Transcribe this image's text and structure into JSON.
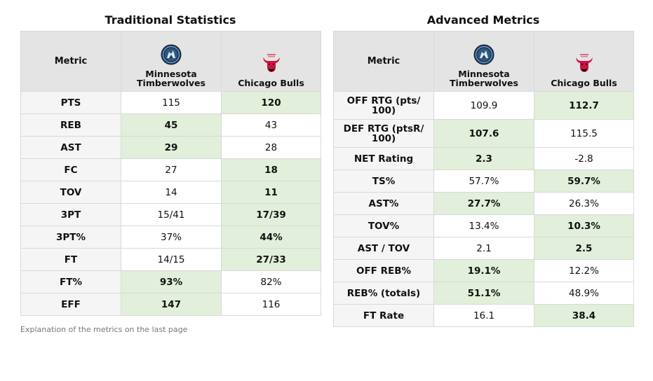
{
  "traditional": {
    "title": "Traditional Statistics",
    "header": {
      "metric": "Metric",
      "team1": "Minnesota Timberwolves",
      "team2": "Chicago Bulls"
    },
    "rows": [
      {
        "metric": "PTS",
        "team1": "115",
        "team2": "120",
        "winner": 2
      },
      {
        "metric": "REB",
        "team1": "45",
        "team2": "43",
        "winner": 1
      },
      {
        "metric": "AST",
        "team1": "29",
        "team2": "28",
        "winner": 1
      },
      {
        "metric": "FC",
        "team1": "27",
        "team2": "18",
        "winner": 2
      },
      {
        "metric": "TOV",
        "team1": "14",
        "team2": "11",
        "winner": 2
      },
      {
        "metric": "3PT",
        "team1": "15/41",
        "team2": "17/39",
        "winner": 2
      },
      {
        "metric": "3PT%",
        "team1": "37%",
        "team2": "44%",
        "winner": 2
      },
      {
        "metric": "FT",
        "team1": "14/15",
        "team2": "27/33",
        "winner": 2
      },
      {
        "metric": "FT%",
        "team1": "93%",
        "team2": "82%",
        "winner": 1
      },
      {
        "metric": "EFF",
        "team1": "147",
        "team2": "116",
        "winner": 1
      }
    ]
  },
  "advanced": {
    "title": "Advanced Metrics",
    "header": {
      "metric": "Metric",
      "team1": "Minnesota Timberwolves",
      "team2": "Chicago Bulls"
    },
    "rows": [
      {
        "metric": "OFF RTG (pts/ 100)",
        "team1": "109.9",
        "team2": "112.7",
        "winner": 2,
        "tall": true
      },
      {
        "metric": "DEF RTG (ptsR/ 100)",
        "team1": "107.6",
        "team2": "115.5",
        "winner": 1,
        "tall": true
      },
      {
        "metric": "NET Rating",
        "team1": "2.3",
        "team2": "-2.8",
        "winner": 1
      },
      {
        "metric": "TS%",
        "team1": "57.7%",
        "team2": "59.7%",
        "winner": 2
      },
      {
        "metric": "AST%",
        "team1": "27.7%",
        "team2": "26.3%",
        "winner": 1
      },
      {
        "metric": "TOV%",
        "team1": "13.4%",
        "team2": "10.3%",
        "winner": 2
      },
      {
        "metric": "AST / TOV",
        "team1": "2.1",
        "team2": "2.5",
        "winner": 2
      },
      {
        "metric": "OFF REB%",
        "team1": "19.1%",
        "team2": "12.2%",
        "winner": 1
      },
      {
        "metric": "REB% (totals)",
        "team1": "51.1%",
        "team2": "48.9%",
        "winner": 1
      },
      {
        "metric": "FT Rate",
        "team1": "16.1",
        "team2": "38.4",
        "winner": 2
      }
    ]
  },
  "logos": {
    "team1": {
      "icon": "timberwolves-logo-icon",
      "color": "#1f3a5c"
    },
    "team2": {
      "icon": "bulls-logo-icon",
      "color": "#ce1141"
    }
  },
  "colors": {
    "win_highlight": "#e2efda",
    "header_bg": "#e4e4e4",
    "metric_bg": "#f5f5f5"
  },
  "footnote": "Explanation of the metrics on the last page"
}
